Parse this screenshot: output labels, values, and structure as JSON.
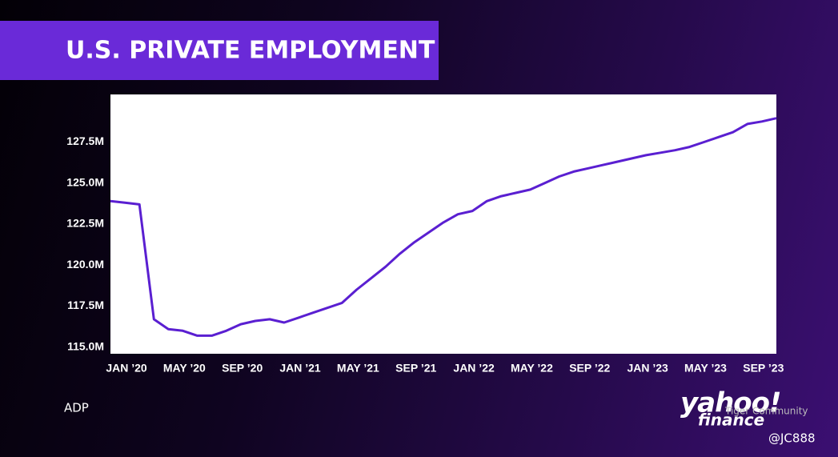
{
  "chart_data": {
    "type": "line",
    "title": "U.S. PRIVATE EMPLOYMENT",
    "source": "ADP",
    "categories": [
      "JAN ’20",
      null,
      null,
      null,
      "MAY ’20",
      null,
      null,
      null,
      "SEP ’20",
      null,
      null,
      null,
      "JAN ’21",
      null,
      null,
      null,
      "MAY ’21",
      null,
      null,
      null,
      "SEP ’21",
      null,
      null,
      null,
      "JAN ’22",
      null,
      null,
      null,
      "MAY ’22",
      null,
      null,
      null,
      "SEP ’22",
      null,
      null,
      null,
      "JAN ’23",
      null,
      null,
      null,
      "MAY ’23",
      null,
      null,
      null,
      "SEP ’23",
      null,
      null
    ],
    "values": [
      123.9,
      123.8,
      123.7,
      116.7,
      116.1,
      116.0,
      115.7,
      115.7,
      116.0,
      116.4,
      116.6,
      116.7,
      116.5,
      116.8,
      117.1,
      117.4,
      117.7,
      118.5,
      119.2,
      119.9,
      120.7,
      121.4,
      122.0,
      122.6,
      123.1,
      123.3,
      123.9,
      124.2,
      124.4,
      124.6,
      125.0,
      125.4,
      125.7,
      125.9,
      126.1,
      126.3,
      126.5,
      126.7,
      126.85,
      127.0,
      127.2,
      127.5,
      127.8,
      128.1,
      128.6,
      128.75,
      128.95
    ],
    "color": "#5a1fd1",
    "ylim": [
      114.6,
      130.4
    ],
    "yticks": [
      {
        "value": 115,
        "label": "115.0M"
      },
      {
        "value": 117.5,
        "label": "117.5M"
      },
      {
        "value": 120,
        "label": "120.0M"
      },
      {
        "value": 122.5,
        "label": "122.5M"
      },
      {
        "value": 125,
        "label": "125.0M"
      },
      {
        "value": 127.5,
        "label": "127.5M"
      }
    ]
  },
  "overlay": {
    "logo_top": "yahoo!",
    "logo_bottom": "finance",
    "watermark": "Tiger Community",
    "handle": "@JC888"
  }
}
